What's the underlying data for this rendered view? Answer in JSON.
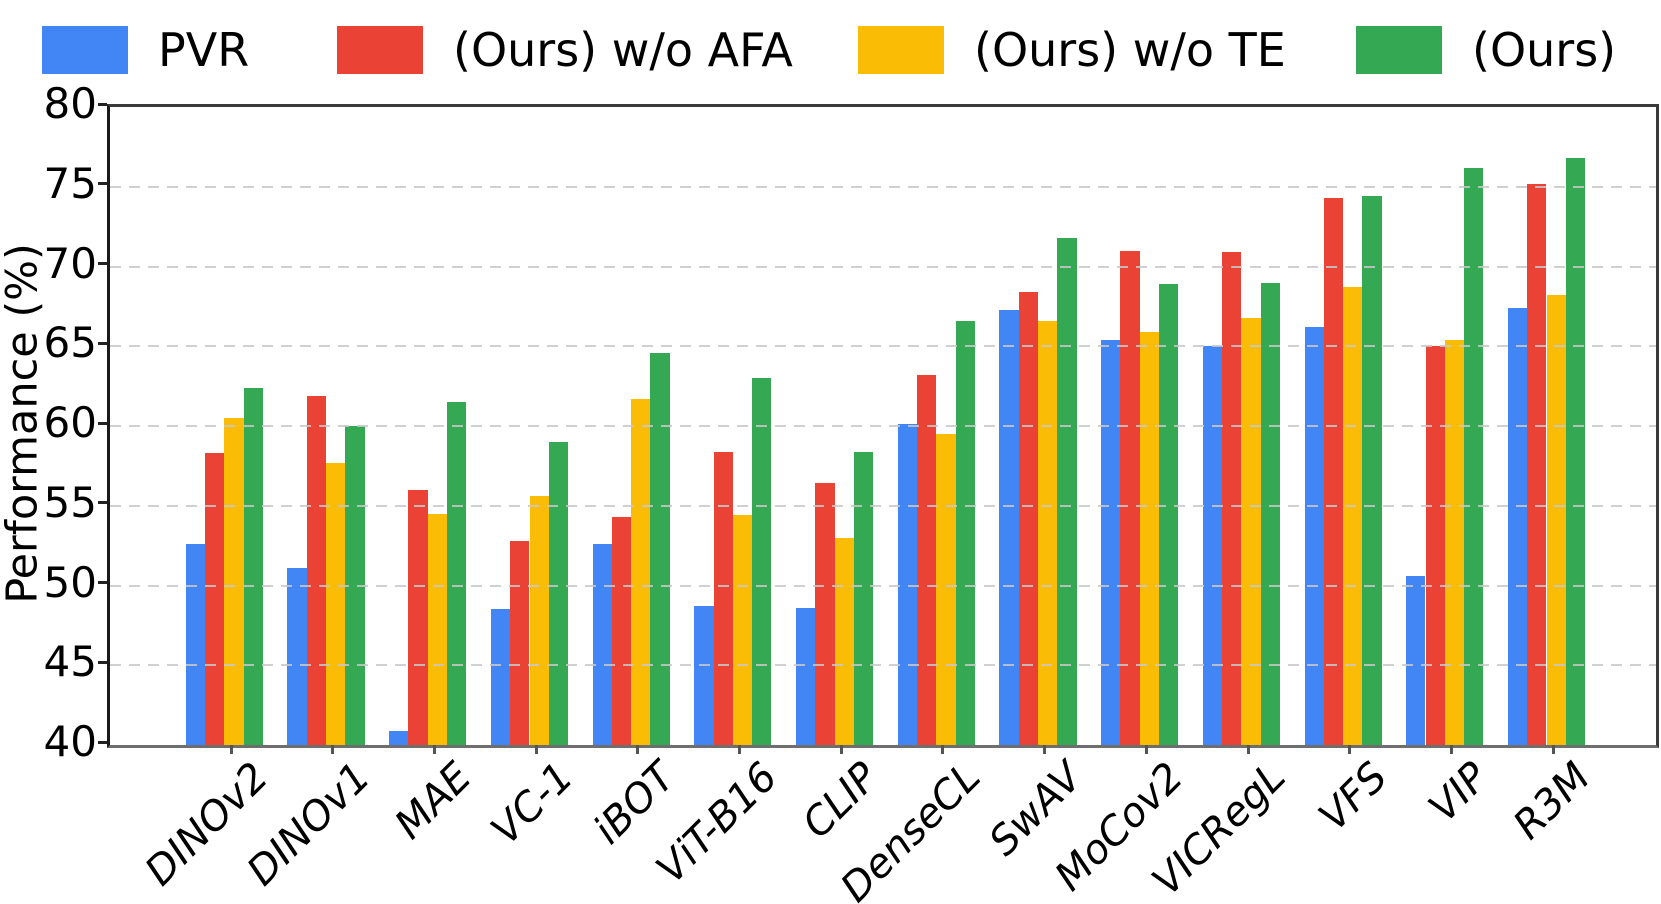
{
  "figure_title": "",
  "legend": {
    "position": "top",
    "entries": [
      {
        "label": "PVR",
        "color": "#4285F4"
      },
      {
        "label": "(Ours) w/o AFA",
        "color": "#EA4335"
      },
      {
        "label": "(Ours) w/o TE",
        "color": "#FBBC05"
      },
      {
        "label": "(Ours)",
        "color": "#34A853"
      }
    ]
  },
  "y_axis": {
    "label": "Performance (%)",
    "ticks": [
      "80",
      "75",
      "70",
      "65",
      "60",
      "55",
      "50",
      "45",
      "40"
    ]
  },
  "chart_data": {
    "type": "bar",
    "title": "",
    "xlabel": "",
    "ylabel": "Performance (%)",
    "ylim": [
      40,
      80
    ],
    "yticks": [
      40,
      45,
      50,
      55,
      60,
      65,
      70,
      75,
      80
    ],
    "grid": "horizontal-dashed",
    "legend_position": "top",
    "categories": [
      "DINOv2",
      "DINOv1",
      "MAE",
      "VC-1",
      "iBOT",
      "ViT-B16",
      "CLIP",
      "DenseCL",
      "SwAV",
      "MoCov2",
      "VICRegL",
      "VFS",
      "VIP",
      "R3M"
    ],
    "series": [
      {
        "name": "PVR",
        "color": "#4285F4",
        "values": [
          52.6,
          51.1,
          40.9,
          48.5,
          52.6,
          48.7,
          48.6,
          60.1,
          67.3,
          65.4,
          65.0,
          66.2,
          50.6,
          67.4
        ]
      },
      {
        "name": "(Ours) w/o AFA",
        "color": "#EA4335",
        "values": [
          58.3,
          61.9,
          56.0,
          52.8,
          54.3,
          58.4,
          56.4,
          63.2,
          68.4,
          71.0,
          70.9,
          74.3,
          65.0,
          75.2
        ]
      },
      {
        "name": "(Ours) w/o TE",
        "color": "#FBBC05",
        "values": [
          60.5,
          57.7,
          54.5,
          55.6,
          61.7,
          54.4,
          53.0,
          59.5,
          66.6,
          65.9,
          66.8,
          68.7,
          65.4,
          68.2
        ]
      },
      {
        "name": "(Ours)",
        "color": "#34A853",
        "values": [
          62.4,
          60.0,
          61.5,
          59.0,
          64.6,
          63.0,
          58.4,
          66.6,
          71.8,
          68.9,
          69.0,
          74.4,
          76.2,
          76.8
        ]
      }
    ]
  }
}
